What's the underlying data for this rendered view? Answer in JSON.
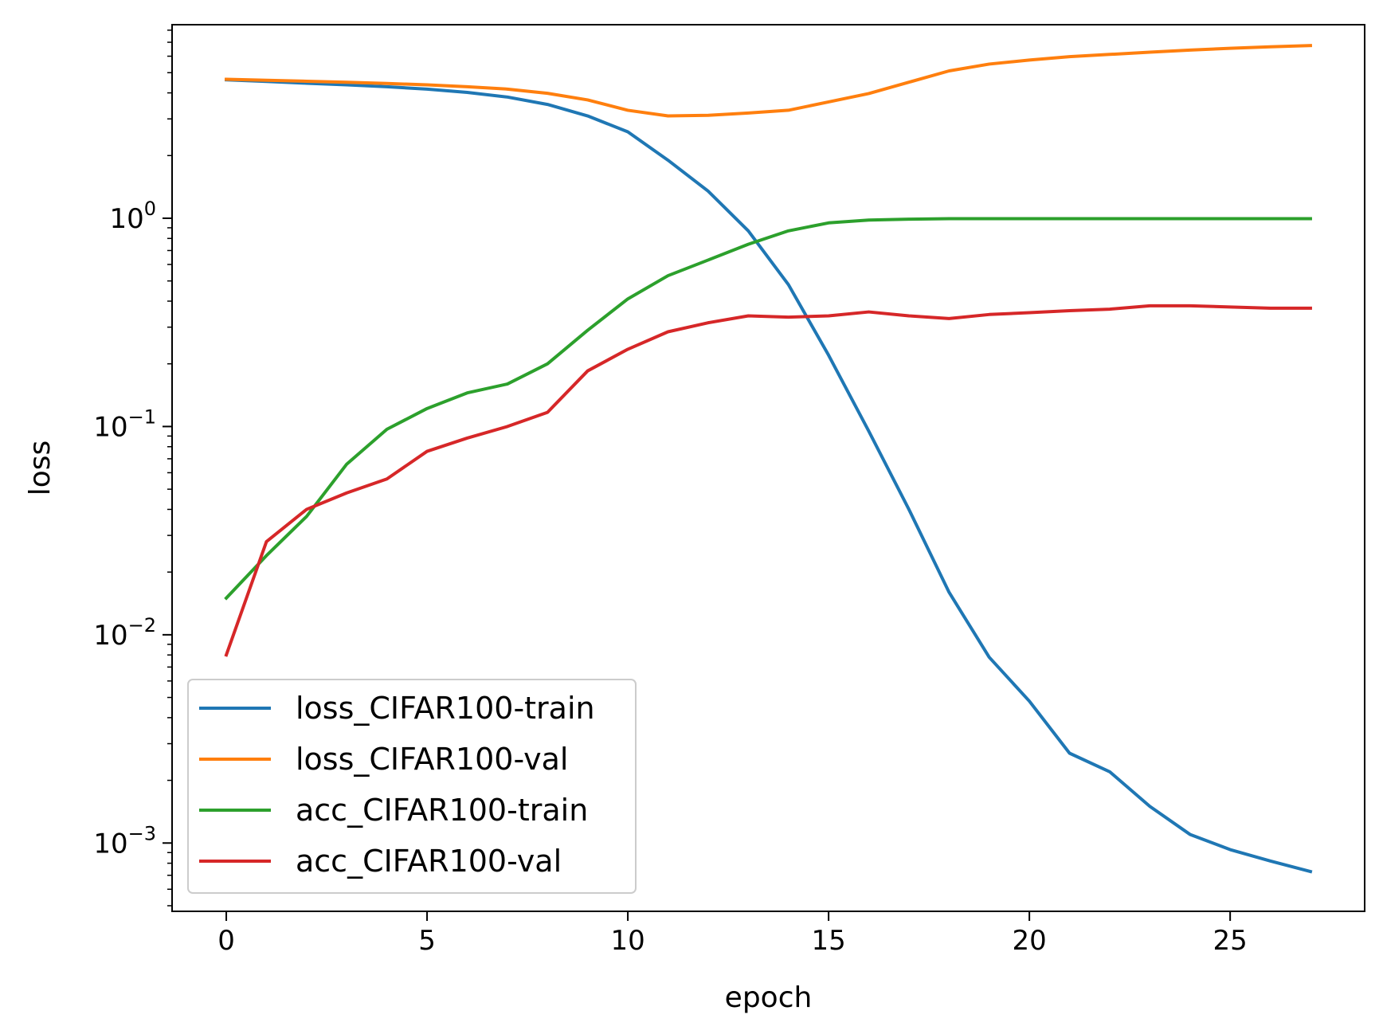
{
  "chart_data": {
    "type": "line",
    "xlabel": "epoch",
    "ylabel": "loss",
    "yscale": "log",
    "xlim": [
      -1.35,
      28.35
    ],
    "ylim": [
      0.00047,
      8.5
    ],
    "grid": false,
    "legend_placement": "lower-left",
    "x_ticks": [
      0,
      5,
      10,
      15,
      20,
      25
    ],
    "x_tick_labels": [
      "0",
      "5",
      "10",
      "15",
      "20",
      "25"
    ],
    "y_ticks": [
      0.001,
      0.01,
      0.1,
      1
    ],
    "y_tick_base": "10",
    "y_tick_exponents": [
      "−3",
      "−2",
      "−1",
      "0"
    ],
    "x": [
      0,
      1,
      2,
      3,
      4,
      5,
      6,
      7,
      8,
      9,
      10,
      11,
      12,
      13,
      14,
      15,
      16,
      17,
      18,
      19,
      20,
      21,
      22,
      23,
      24,
      25,
      26,
      27
    ],
    "series": [
      {
        "name": "loss_CIFAR100-train",
        "color": "#1f77b4",
        "values": [
          4.62,
          4.54,
          4.45,
          4.37,
          4.28,
          4.17,
          4.02,
          3.82,
          3.52,
          3.1,
          2.6,
          1.9,
          1.35,
          0.87,
          0.48,
          0.22,
          0.095,
          0.04,
          0.016,
          0.0078,
          0.0048,
          0.0027,
          0.0022,
          0.0015,
          0.0011,
          0.00093,
          0.00082,
          0.00073
        ]
      },
      {
        "name": "loss_CIFAR100-val",
        "color": "#ff7f0e",
        "values": [
          4.65,
          4.6,
          4.55,
          4.5,
          4.44,
          4.37,
          4.28,
          4.17,
          3.98,
          3.7,
          3.3,
          3.1,
          3.12,
          3.2,
          3.3,
          3.62,
          3.97,
          4.5,
          5.1,
          5.5,
          5.75,
          5.97,
          6.12,
          6.27,
          6.42,
          6.55,
          6.66,
          6.75
        ]
      },
      {
        "name": "acc_CIFAR100-train",
        "color": "#2ca02c",
        "values": [
          0.015,
          0.024,
          0.037,
          0.066,
          0.097,
          0.122,
          0.145,
          0.16,
          0.2,
          0.29,
          0.41,
          0.53,
          0.63,
          0.75,
          0.87,
          0.95,
          0.98,
          0.99,
          0.995,
          0.995,
          0.995,
          0.995,
          0.995,
          0.995,
          0.995,
          0.995,
          0.995,
          0.995
        ]
      },
      {
        "name": "acc_CIFAR100-val",
        "color": "#d62728",
        "values": [
          0.008,
          0.028,
          0.04,
          0.048,
          0.056,
          0.076,
          0.088,
          0.1,
          0.117,
          0.185,
          0.235,
          0.285,
          0.315,
          0.34,
          0.335,
          0.34,
          0.355,
          0.34,
          0.33,
          0.345,
          0.352,
          0.36,
          0.366,
          0.38,
          0.38,
          0.375,
          0.37,
          0.37
        ]
      }
    ]
  }
}
